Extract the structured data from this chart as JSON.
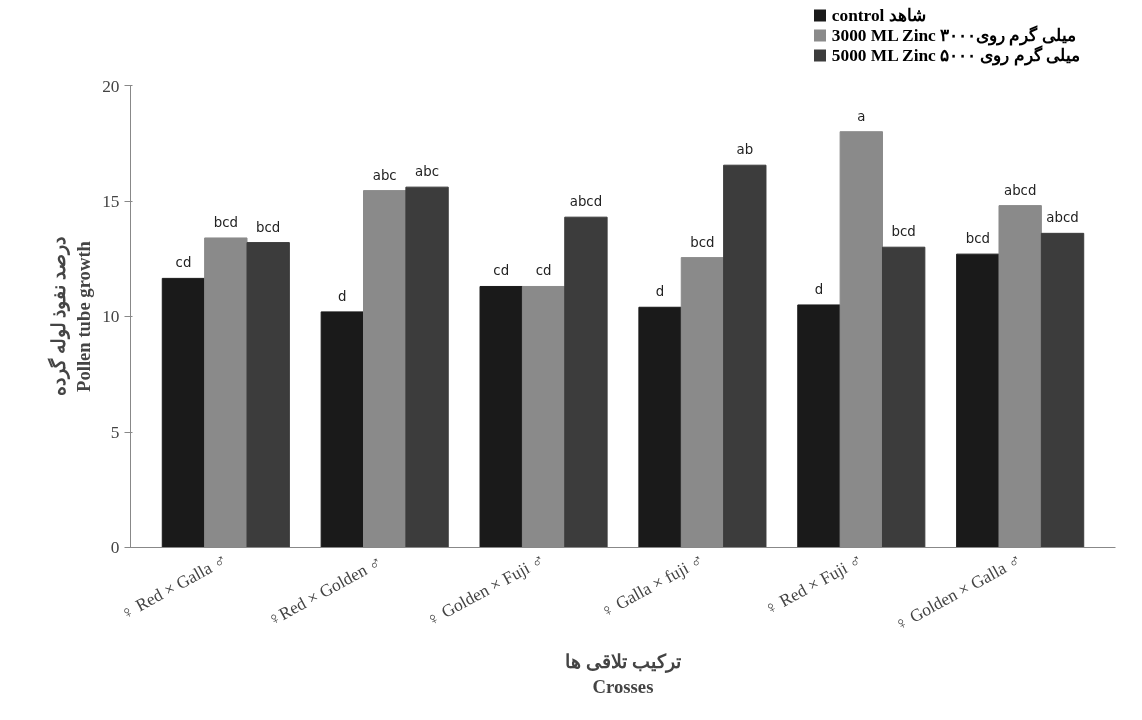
{
  "chart_data": {
    "type": "bar",
    "xlabel": "ترکیب تلاقی ها\nCrosses",
    "ylabel": "درصد نفوذ لوله گرده\nPollen tube growth",
    "categories": [
      "♀ Red × Galla ♂",
      "♀Red ×  Golden ♂",
      "♀ Golden × Fuji ♂",
      "♀ Galla × fuji ♂",
      "♀ Red × Fuji ♂",
      "♀ Golden × Galla ♂"
    ],
    "series": [
      {
        "name": "control شاهد",
        "color": "#1a1a1a",
        "values": [
          11.65,
          10.2,
          11.3,
          10.4,
          10.5,
          12.7
        ],
        "value_labels": [
          "cd",
          "d",
          "cd",
          "d",
          "d",
          "bcd"
        ]
      },
      {
        "name": "3000 ML Zinc ۳۰۰۰میلی گرم روی",
        "color": "#8a8a8a",
        "values": [
          13.4,
          15.45,
          11.3,
          12.55,
          18.0,
          14.8
        ],
        "value_labels": [
          "bcd",
          "abc",
          "cd",
          "bcd",
          "a",
          "abcd"
        ]
      },
      {
        "name": "5000 ML Zinc ۵۰۰۰ میلی گرم روی",
        "color": "#3c3c3c",
        "values": [
          13.2,
          15.6,
          14.3,
          16.55,
          13.0,
          13.6
        ],
        "value_labels": [
          "bcd",
          "abc",
          "abcd",
          "ab",
          "bcd",
          "abcd"
        ]
      }
    ],
    "ylim": [
      0,
      20
    ],
    "yticks": [
      0,
      5,
      10,
      15,
      20
    ],
    "grid": false,
    "legend": "top right"
  }
}
